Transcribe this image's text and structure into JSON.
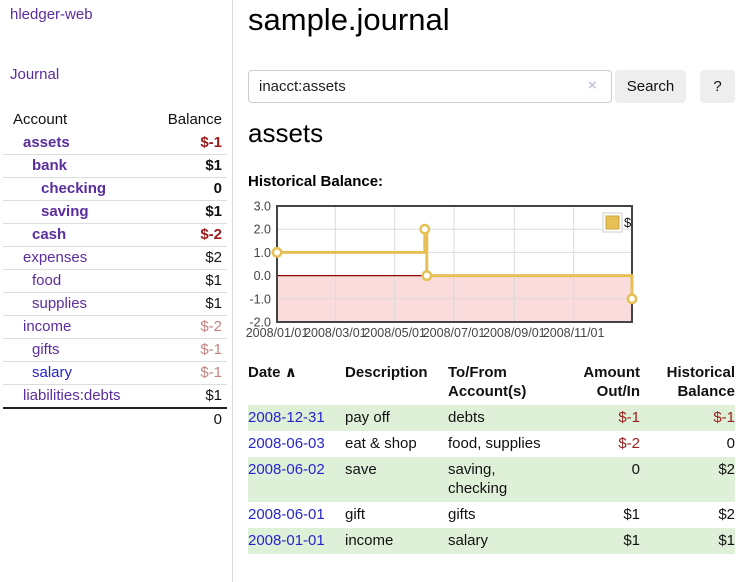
{
  "sidebar": {
    "app_title": "hledger-web",
    "journal_link": "Journal",
    "accounts": {
      "account_header": "Account",
      "balance_header": "Balance",
      "rows": [
        {
          "name": "assets",
          "depth": 1,
          "bold": true,
          "balance": "$-1"
        },
        {
          "name": "bank",
          "depth": 2,
          "bold": true,
          "balance": "$1"
        },
        {
          "name": "checking",
          "depth": 3,
          "bold": true,
          "balance": "0"
        },
        {
          "name": "saving",
          "depth": 3,
          "bold": true,
          "balance": "$1"
        },
        {
          "name": "cash",
          "depth": 2,
          "bold": true,
          "balance": "$-2"
        },
        {
          "name": "expenses",
          "depth": 1,
          "bold": false,
          "balance": "$2"
        },
        {
          "name": "food",
          "depth": 2,
          "bold": false,
          "balance": "$1"
        },
        {
          "name": "supplies",
          "depth": 2,
          "bold": false,
          "balance": "$1"
        },
        {
          "name": "income",
          "depth": 1,
          "bold": false,
          "balance": "$-2"
        },
        {
          "name": "gifts",
          "depth": 2,
          "bold": false,
          "balance": "$-1"
        },
        {
          "name": "salary",
          "depth": 2,
          "bold": false,
          "balance": "$-1",
          "link_style": "blue"
        },
        {
          "name": "liabilities:debts",
          "depth": 1,
          "bold": false,
          "balance": "$1"
        }
      ],
      "total": "0"
    }
  },
  "main": {
    "title": "sample.journal",
    "search": {
      "value": "inacct:assets",
      "clear_icon": "×",
      "search_button": "Search",
      "help_button": "?"
    },
    "account_heading": "assets",
    "chart_label": "Historical Balance:",
    "transactions": {
      "headers": {
        "date": "Date",
        "sort_icon": "∧",
        "description": "Description",
        "account": "To/From Account(s)",
        "amount": "Amount Out/In",
        "balance": "Historical Balance"
      },
      "rows": [
        {
          "date": "2008-12-31",
          "description": "pay off",
          "accounts": "debts",
          "amount": "$-1",
          "balance": "$-1",
          "green": true
        },
        {
          "date": "2008-06-03",
          "description": "eat & shop",
          "accounts": "food, supplies",
          "amount": "$-2",
          "balance": "0",
          "green": false
        },
        {
          "date": "2008-06-02",
          "description": "save",
          "accounts": "saving, checking",
          "amount": "0",
          "balance": "$2",
          "green": true
        },
        {
          "date": "2008-06-01",
          "description": "gift",
          "accounts": "gifts",
          "amount": "$1",
          "balance": "$2",
          "green": false
        },
        {
          "date": "2008-01-01",
          "description": "income",
          "accounts": "salary",
          "amount": "$1",
          "balance": "$1",
          "green": true
        }
      ]
    }
  },
  "chart_data": {
    "type": "line",
    "step": true,
    "series": [
      {
        "name": "$",
        "points": [
          [
            "2008-01-01",
            1
          ],
          [
            "2008-06-01",
            2
          ],
          [
            "2008-06-03",
            0
          ],
          [
            "2008-12-31",
            -1
          ]
        ]
      }
    ],
    "x_range": [
      "2008-01-01",
      "2008-12-31"
    ],
    "x_ticks": [
      "2008/01/01",
      "2008/03/01",
      "2008/05/01",
      "2008/07/01",
      "2008/09/01",
      "2008/11/01"
    ],
    "y_ticks": [
      "3.0",
      "2.0",
      "1.0",
      "0.0",
      "-1.0",
      "-2.0"
    ],
    "ylim": [
      -2,
      3
    ],
    "grid": true,
    "negative_region_shaded": true,
    "legend": {
      "position": "top-right",
      "label": "$"
    }
  },
  "colors": {
    "link_purple": "#5b2d9e",
    "link_blue": "#2525cd",
    "negative_strong": "#9b1b1b",
    "negative_light": "#c48383",
    "row_green": "#dff0d8",
    "chart_line": "#E6C054",
    "chart_line_border": "#C9A43A",
    "negative_fill": "#FBDCDC",
    "zero_line": "#8B0000",
    "chart_border": "#444444",
    "gridline": "#d9d9d9",
    "button_bg": "#eeeeee"
  }
}
